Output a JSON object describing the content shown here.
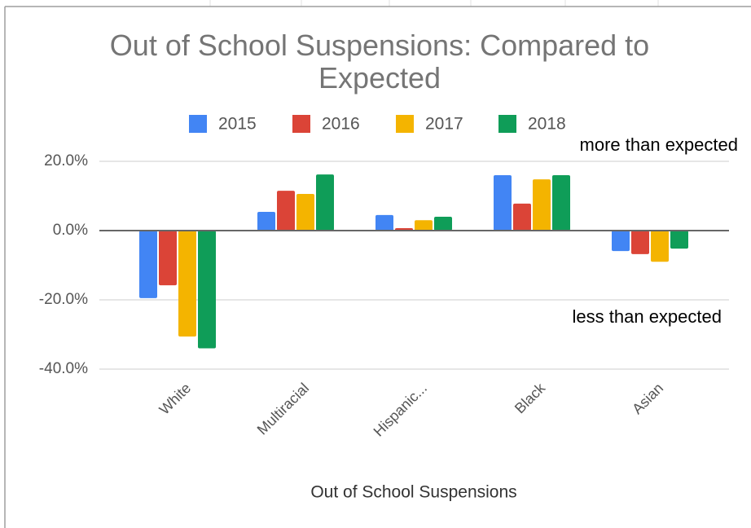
{
  "chart_data": {
    "type": "bar",
    "title": "Out of School Suspensions: Compared to Expected",
    "x_label": "Out of School Suspensions",
    "annotations": [
      "more than expected",
      "less than expected"
    ],
    "categories": [
      "White",
      "Multiracial",
      "Hispanic...",
      "Black",
      "Asian"
    ],
    "series": [
      {
        "name": "2015",
        "color": "#4285f4",
        "values": [
          -19.5,
          5.4,
          4.5,
          16,
          -5.9
        ]
      },
      {
        "name": "2016",
        "color": "#db4437",
        "values": [
          -15.8,
          11.5,
          0.7,
          7.8,
          -6.8
        ]
      },
      {
        "name": "2017",
        "color": "#f4b400",
        "values": [
          -30.6,
          10.6,
          3,
          14.8,
          -9
        ]
      },
      {
        "name": "2018",
        "color": "#0f9d58",
        "values": [
          -34,
          16.2,
          4,
          16,
          -5.2
        ]
      }
    ],
    "ylim": [
      -40,
      20
    ],
    "yticks": [
      {
        "value": 20,
        "label": "20.0%"
      },
      {
        "value": 0,
        "label": "0.0%"
      },
      {
        "value": -20,
        "label": "-20.0%"
      },
      {
        "value": -40,
        "label": "-40.0%"
      }
    ],
    "grid": true,
    "legend": "top"
  }
}
